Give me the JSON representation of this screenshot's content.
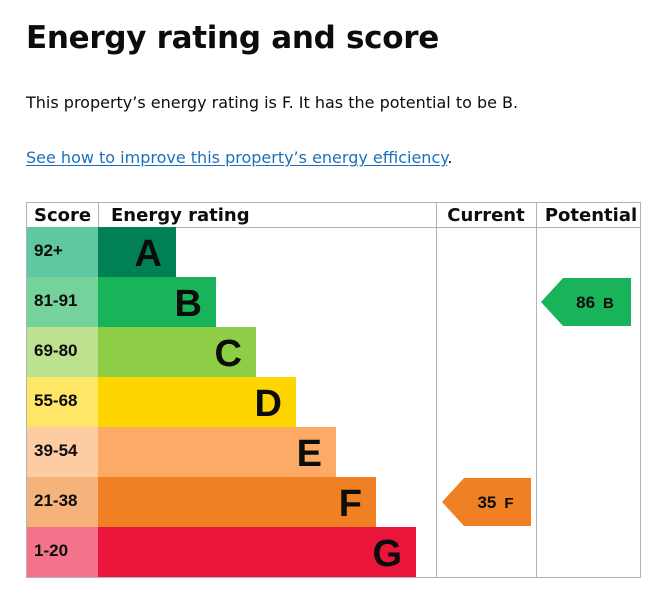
{
  "page": {
    "title": "Energy rating and score",
    "summary": "This property’s energy rating is F. It has the potential to be B.",
    "improve_link": "See how to improve this property’s energy efficiency",
    "improve_suffix": "."
  },
  "chart": {
    "headers": {
      "score": "Score",
      "rating": "Energy rating",
      "current": "Current",
      "potential": "Potential"
    },
    "bands": [
      {
        "letter": "A",
        "range": "92+",
        "color": "#008054",
        "score_color": "#5ec8a0"
      },
      {
        "letter": "B",
        "range": "81-91",
        "color": "#19b459",
        "score_color": "#75d29b"
      },
      {
        "letter": "C",
        "range": "69-80",
        "color": "#8dce46",
        "score_color": "#bce290"
      },
      {
        "letter": "D",
        "range": "55-68",
        "color": "#ffd500",
        "score_color": "#ffe666"
      },
      {
        "letter": "E",
        "range": "39-54",
        "color": "#fcaa65",
        "score_color": "#fdcca3"
      },
      {
        "letter": "F",
        "range": "21-38",
        "color": "#ef8023",
        "score_color": "#f5b37b"
      },
      {
        "letter": "G",
        "range": "1-20",
        "color": "#e9153b",
        "score_color": "#f2738a"
      }
    ],
    "current": {
      "value": "35",
      "letter": "F",
      "color": "#ef8023",
      "text_color": "#0b0c0c"
    },
    "potential": {
      "value": "86",
      "letter": "B",
      "color": "#19b459",
      "text_color": "#0b0c0c"
    }
  }
}
